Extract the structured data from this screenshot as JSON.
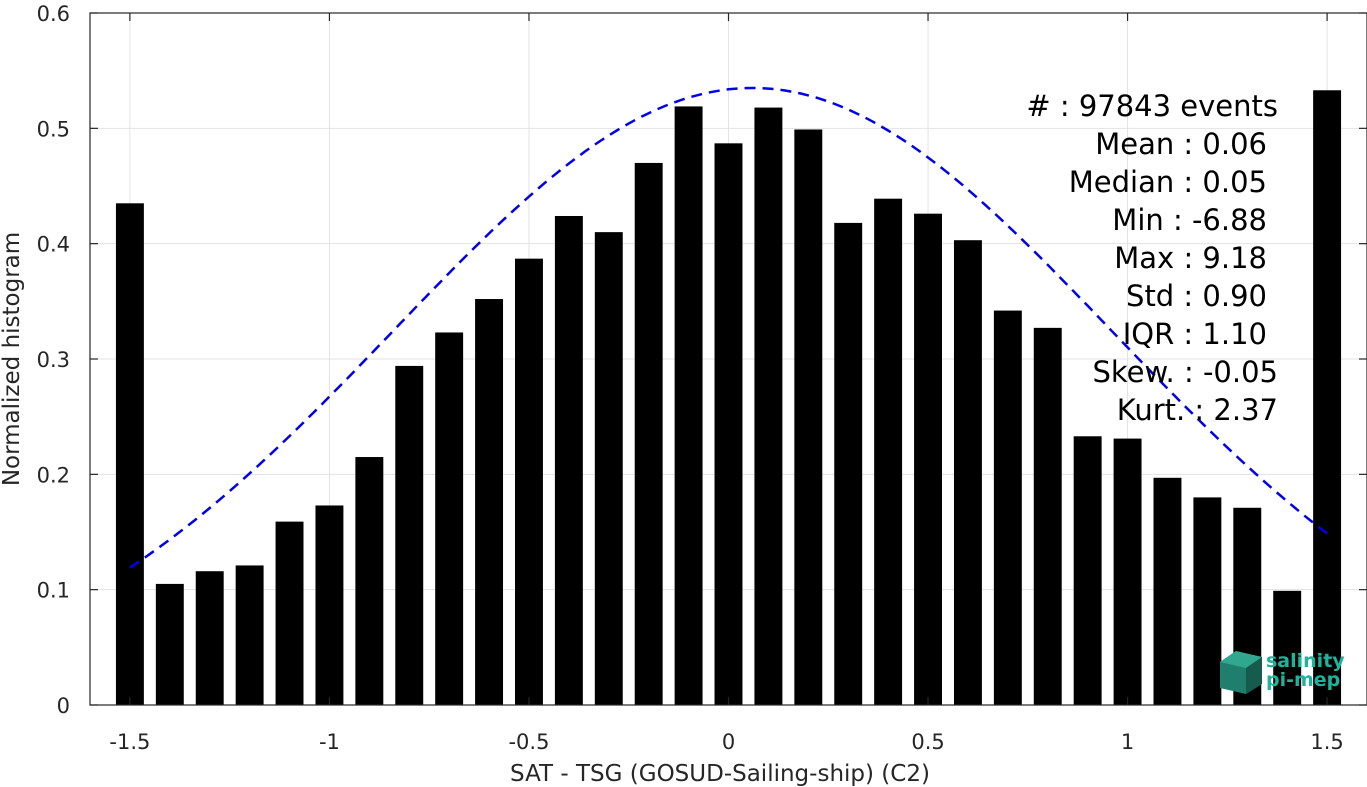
{
  "chart_data": {
    "type": "bar",
    "title": "",
    "xlabel": "SAT - TSG (GOSUD-Sailing-ship) (C2)",
    "ylabel": "Normalized histogram",
    "xlim": [
      -1.6,
      1.6
    ],
    "ylim": [
      0,
      0.6
    ],
    "grid": true,
    "legend": "none",
    "x_ticks": [
      "-1.5",
      "-1",
      "-0.5",
      "0",
      "0.5",
      "1",
      "1.5"
    ],
    "y_ticks": [
      "0",
      "0.1",
      "0.2",
      "0.3",
      "0.4",
      "0.5",
      "0.6"
    ],
    "bar_width": 0.07,
    "series": [
      {
        "type": "bar",
        "color": "#000000",
        "x": [
          -1.5,
          -1.4,
          -1.3,
          -1.2,
          -1.1,
          -1.0,
          -0.9,
          -0.8,
          -0.7,
          -0.6,
          -0.5,
          -0.4,
          -0.3,
          -0.2,
          -0.1,
          0.0,
          0.1,
          0.2,
          0.3,
          0.4,
          0.5,
          0.6,
          0.7,
          0.8,
          0.9,
          1.0,
          1.1,
          1.2,
          1.3,
          1.4,
          1.5
        ],
        "values": [
          0.435,
          0.105,
          0.116,
          0.121,
          0.159,
          0.173,
          0.215,
          0.294,
          0.323,
          0.352,
          0.387,
          0.424,
          0.41,
          0.47,
          0.519,
          0.487,
          0.518,
          0.499,
          0.418,
          0.439,
          0.426,
          0.403,
          0.342,
          0.327,
          0.233,
          0.231,
          0.197,
          0.18,
          0.171,
          0.099,
          0.533
        ]
      },
      {
        "type": "line",
        "style": "dashed",
        "color": "#0000ee",
        "mean": 0.06,
        "std": 0.9,
        "peak": 0.535,
        "x_range": [
          -1.5,
          1.5
        ]
      }
    ],
    "annotations": [
      "#  : 97843 events",
      "Mean : 0.06",
      "Median : 0.05",
      "Min : -6.88",
      "Max : 9.18",
      "Std : 0.90",
      "IQR : 1.10",
      "Skew. : -0.05",
      "Kurt. : 2.37"
    ]
  },
  "logo": {
    "line1": "salinity",
    "line2": "pi-mep",
    "color": "#1bb59c"
  }
}
